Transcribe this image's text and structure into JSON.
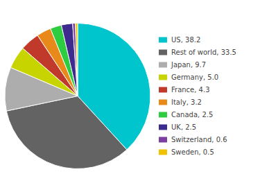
{
  "chart_data": {
    "type": "pie",
    "categories": [
      "US, 38.2",
      "Rest of world, 33.5",
      "Japan, 9.7",
      "Germany, 5.0",
      "France, 4.3",
      "Italy, 3.2",
      "Canada, 2.5",
      "UK, 2.5",
      "Switzerland, 0.6",
      "Sweden, 0.5"
    ],
    "values": [
      38.2,
      33.5,
      9.7,
      5.0,
      4.3,
      3.2,
      2.5,
      2.5,
      0.6,
      0.5
    ],
    "colors": [
      "#00C5CD",
      "#636363",
      "#ADADAD",
      "#C8D400",
      "#C0392B",
      "#E8891A",
      "#2ECC40",
      "#3D2B8E",
      "#7B3FA0",
      "#F0C300"
    ],
    "legend": "right"
  }
}
